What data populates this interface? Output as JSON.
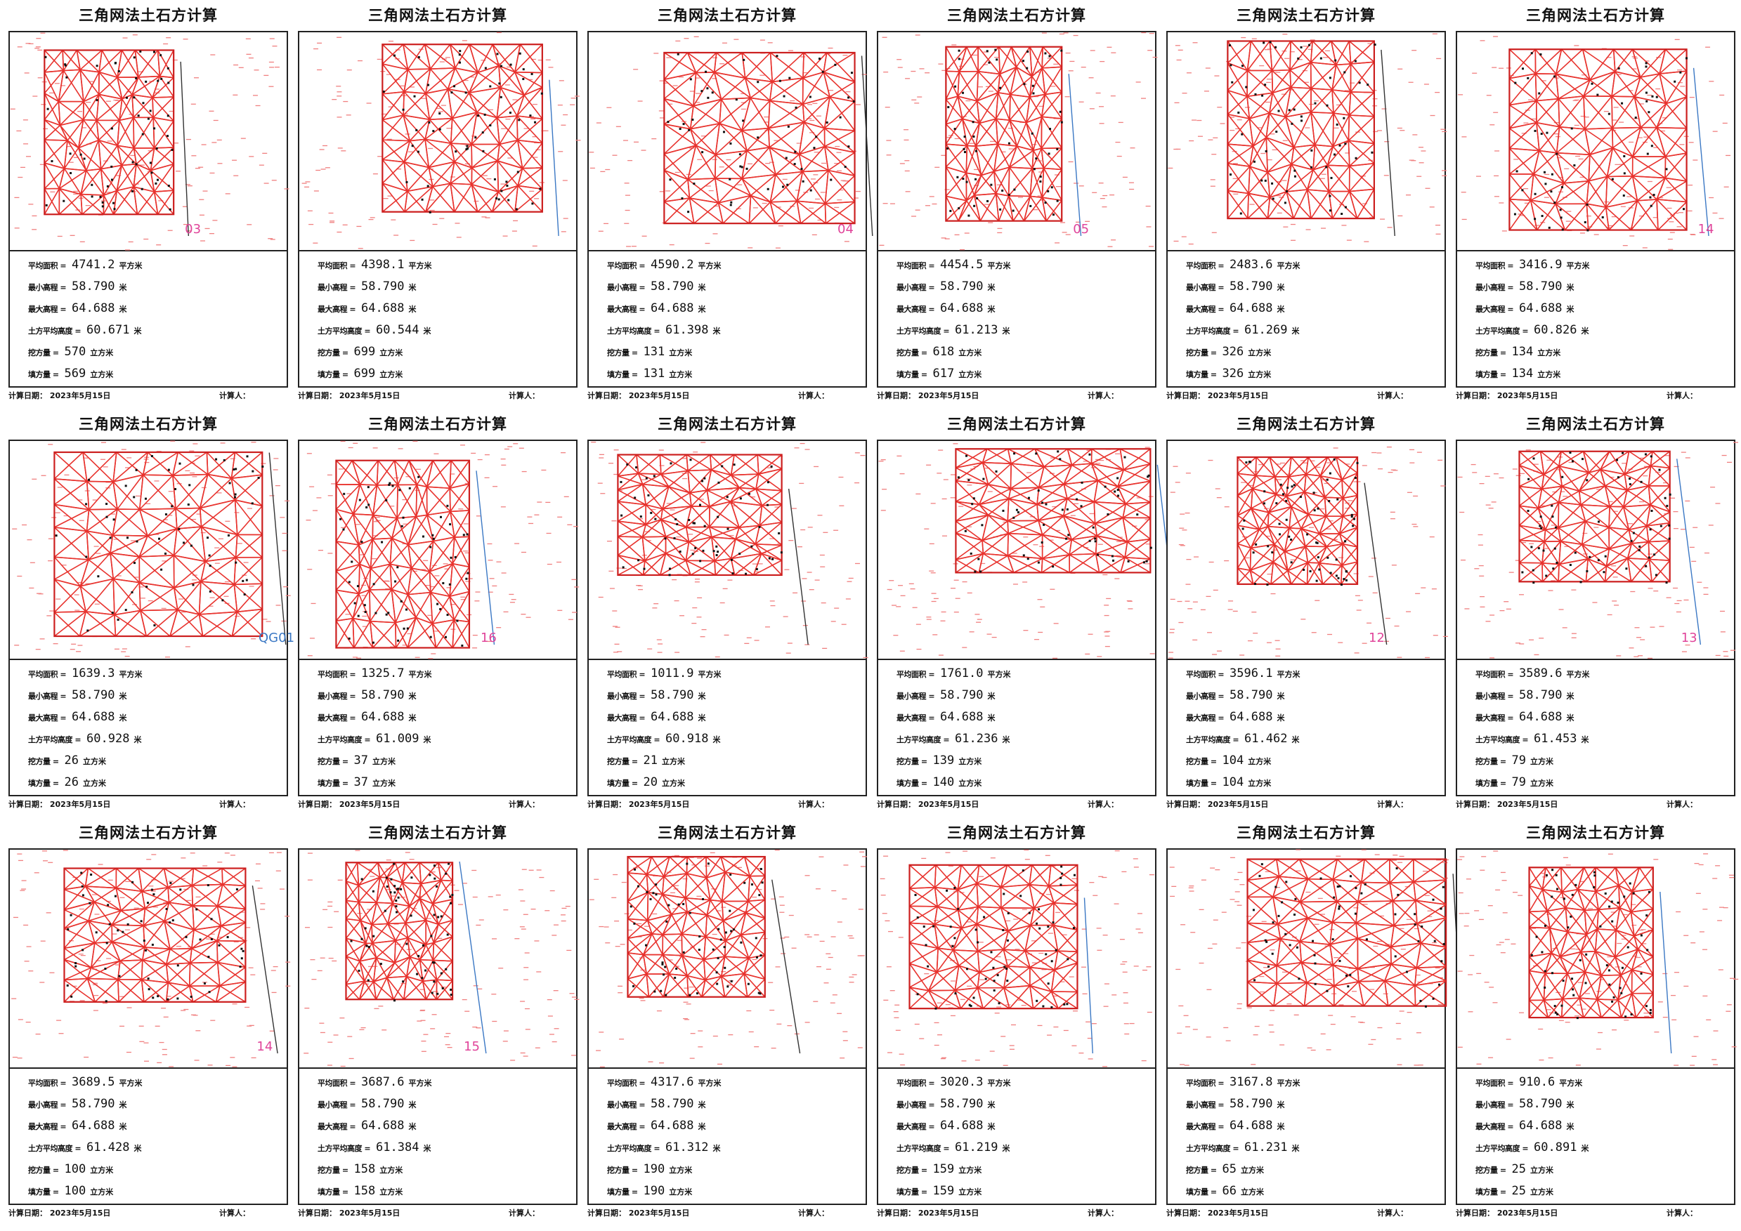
{
  "page_title": "三角网法土石方计算",
  "labels": {
    "avg_area": "平均面积 =",
    "min_elev": "最小高程 =",
    "max_elev": "最大高程 =",
    "avg_elev": "土方平均高度 =",
    "cut": "挖方量 =",
    "fill": "填方量 ="
  },
  "units": {
    "area": "平方米",
    "elev": "米",
    "volume": "立方米"
  },
  "footer": {
    "date": "计算日期： 2023年5月15日",
    "calc": "计算人："
  },
  "sheets": [
    {
      "tag": "03",
      "avg_area": "4741.2",
      "min_elev": "58.790",
      "max_elev": "64.688",
      "avg_elev": "60.671",
      "cut": "570",
      "fill": "569"
    },
    {
      "tag": "",
      "avg_area": "4398.1",
      "min_elev": "58.790",
      "max_elev": "64.688",
      "avg_elev": "60.544",
      "cut": "699",
      "fill": "699"
    },
    {
      "tag": "04",
      "avg_area": "4590.2",
      "min_elev": "58.790",
      "max_elev": "64.688",
      "avg_elev": "61.398",
      "cut": "131",
      "fill": "131"
    },
    {
      "tag": "05",
      "avg_area": "4454.5",
      "min_elev": "58.790",
      "max_elev": "64.688",
      "avg_elev": "61.213",
      "cut": "618",
      "fill": "617"
    },
    {
      "tag": "",
      "avg_area": "2483.6",
      "min_elev": "58.790",
      "max_elev": "64.688",
      "avg_elev": "61.269",
      "cut": "326",
      "fill": "326"
    },
    {
      "tag": "14",
      "avg_area": "3416.9",
      "min_elev": "58.790",
      "max_elev": "64.688",
      "avg_elev": "60.826",
      "cut": "134",
      "fill": "134"
    },
    {
      "tag": "QG01",
      "avg_area": "1639.3",
      "min_elev": "58.790",
      "max_elev": "64.688",
      "avg_elev": "60.928",
      "cut": "26",
      "fill": "26"
    },
    {
      "tag": "16",
      "avg_area": "1325.7",
      "min_elev": "58.790",
      "max_elev": "64.688",
      "avg_elev": "61.009",
      "cut": "37",
      "fill": "37"
    },
    {
      "tag": "",
      "avg_area": "1011.9",
      "min_elev": "58.790",
      "max_elev": "64.688",
      "avg_elev": "60.918",
      "cut": "21",
      "fill": "20"
    },
    {
      "tag": "",
      "avg_area": "1761.0",
      "min_elev": "58.790",
      "max_elev": "64.688",
      "avg_elev": "61.236",
      "cut": "139",
      "fill": "140"
    },
    {
      "tag": "12",
      "avg_area": "3596.1",
      "min_elev": "58.790",
      "max_elev": "64.688",
      "avg_elev": "61.462",
      "cut": "104",
      "fill": "104"
    },
    {
      "tag": "13",
      "avg_area": "3589.6",
      "min_elev": "58.790",
      "max_elev": "64.688",
      "avg_elev": "61.453",
      "cut": "79",
      "fill": "79"
    },
    {
      "tag": "14",
      "avg_area": "3689.5",
      "min_elev": "58.790",
      "max_elev": "64.688",
      "avg_elev": "61.428",
      "cut": "100",
      "fill": "100"
    },
    {
      "tag": "15",
      "avg_area": "3687.6",
      "min_elev": "58.790",
      "max_elev": "64.688",
      "avg_elev": "61.384",
      "cut": "158",
      "fill": "158"
    },
    {
      "tag": "",
      "avg_area": "4317.6",
      "min_elev": "58.790",
      "max_elev": "64.688",
      "avg_elev": "61.312",
      "cut": "190",
      "fill": "190"
    },
    {
      "tag": "",
      "avg_area": "3020.3",
      "min_elev": "58.790",
      "max_elev": "64.688",
      "avg_elev": "61.219",
      "cut": "159",
      "fill": "159"
    },
    {
      "tag": "",
      "avg_area": "3167.8",
      "min_elev": "58.790",
      "max_elev": "64.688",
      "avg_elev": "61.231",
      "cut": "65",
      "fill": "66"
    },
    {
      "tag": "",
      "avg_area": "910.6",
      "min_elev": "58.790",
      "max_elev": "64.688",
      "avg_elev": "60.891",
      "cut": "25",
      "fill": "25"
    }
  ]
}
